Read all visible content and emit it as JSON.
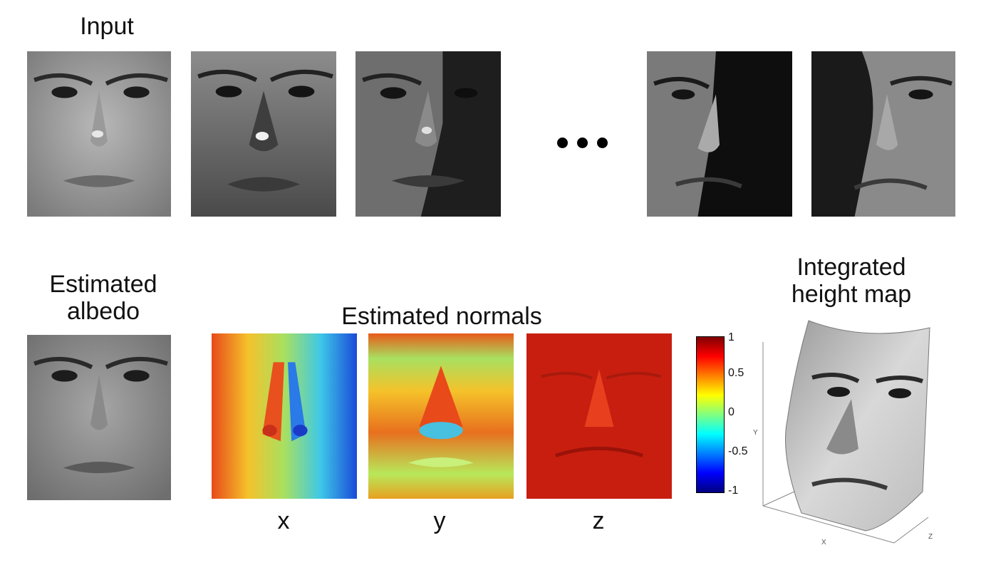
{
  "input_label": "Input",
  "albedo_label": [
    "Estimated",
    "albedo"
  ],
  "normals_label": "Estimated normals",
  "height_label": [
    "Integrated",
    "height map"
  ],
  "axis_names": {
    "x": "x",
    "y": "y",
    "z": "z"
  },
  "colorbar": {
    "ticks": [
      "1",
      "0.5",
      "0",
      "-0.5",
      "-1"
    ],
    "range": [
      -1,
      1
    ],
    "colormap": "jet"
  },
  "plot3d_axes": {
    "x": "X",
    "y": "Y",
    "z": "Z"
  },
  "input_images": [
    {
      "name": "input-face-1",
      "lighting": "frontal",
      "brightness": 0.62
    },
    {
      "name": "input-face-2",
      "lighting": "top",
      "brightness": 0.45
    },
    {
      "name": "input-face-3",
      "lighting": "right-shadow",
      "brightness": 0.35
    },
    {
      "name": "input-face-4",
      "lighting": "left-side",
      "brightness": 0.25
    },
    {
      "name": "input-face-5",
      "lighting": "right-side",
      "brightness": 0.3
    }
  ],
  "ellipsis": "•••"
}
